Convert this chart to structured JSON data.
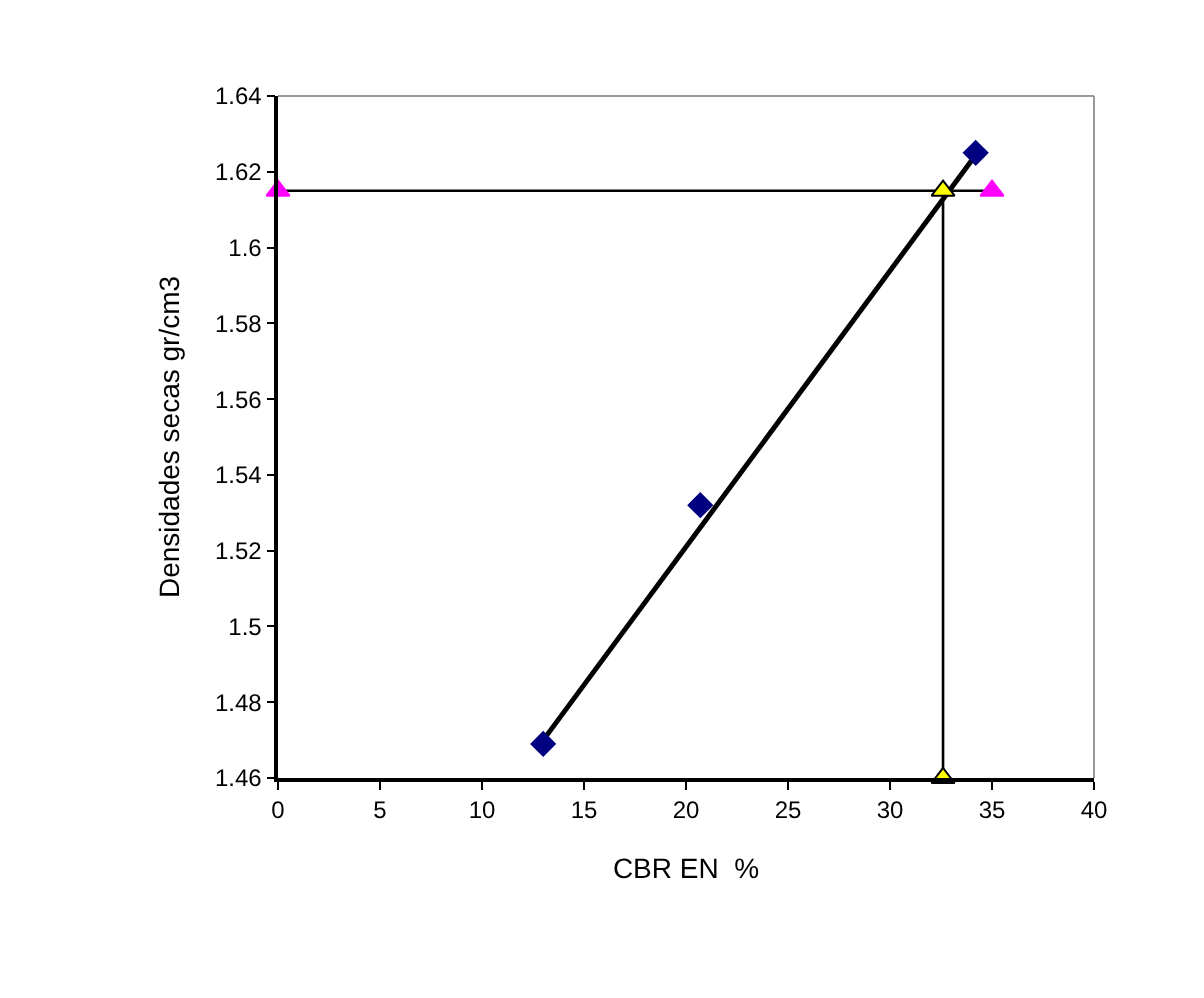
{
  "chart_data": {
    "type": "scatter",
    "xlabel": "CBR EN  %",
    "ylabel": "Densidades secas gr/cm3",
    "xlim": [
      0,
      40
    ],
    "xticks": [
      0,
      5,
      10,
      15,
      20,
      25,
      30,
      35,
      40
    ],
    "ylim": [
      1.46,
      1.64
    ],
    "yticks": [
      {
        "value": 1.46,
        "label": "1.46"
      },
      {
        "value": 1.48,
        "label": "1.48"
      },
      {
        "value": 1.5,
        "label": "1.5"
      },
      {
        "value": 1.52,
        "label": "1.52"
      },
      {
        "value": 1.54,
        "label": "1.54"
      },
      {
        "value": 1.56,
        "label": "1.56"
      },
      {
        "value": 1.58,
        "label": "1.58"
      },
      {
        "value": 1.6,
        "label": "1.6"
      },
      {
        "value": 1.62,
        "label": "1.62"
      },
      {
        "value": 1.64,
        "label": "1.64"
      }
    ],
    "grid": false,
    "series": [
      {
        "type": "line",
        "color": "#000000",
        "marker": "none",
        "x": [
          0,
          35
        ],
        "values": [
          1.615,
          1.615
        ]
      },
      {
        "type": "line",
        "color": "#000000",
        "marker": "none",
        "x": [
          32.6,
          32.6
        ],
        "values": [
          1.46,
          1.615
        ]
      },
      {
        "type": "line",
        "color": "#000000",
        "marker": "none",
        "x": [
          13,
          34
        ],
        "values": [
          1.47,
          1.623
        ]
      },
      {
        "color": "#000080",
        "marker": "diamond",
        "x": [
          13,
          20.7,
          34.2
        ],
        "values": [
          1.469,
          1.532,
          1.625
        ]
      },
      {
        "color": "#ff00ff",
        "marker": "triangle",
        "x": [
          0,
          35
        ],
        "values": [
          1.615,
          1.615
        ]
      },
      {
        "color": "#ffff00",
        "marker": "triangle",
        "x": [
          32.6,
          32.6
        ],
        "values": [
          1.615,
          1.46
        ]
      }
    ]
  }
}
